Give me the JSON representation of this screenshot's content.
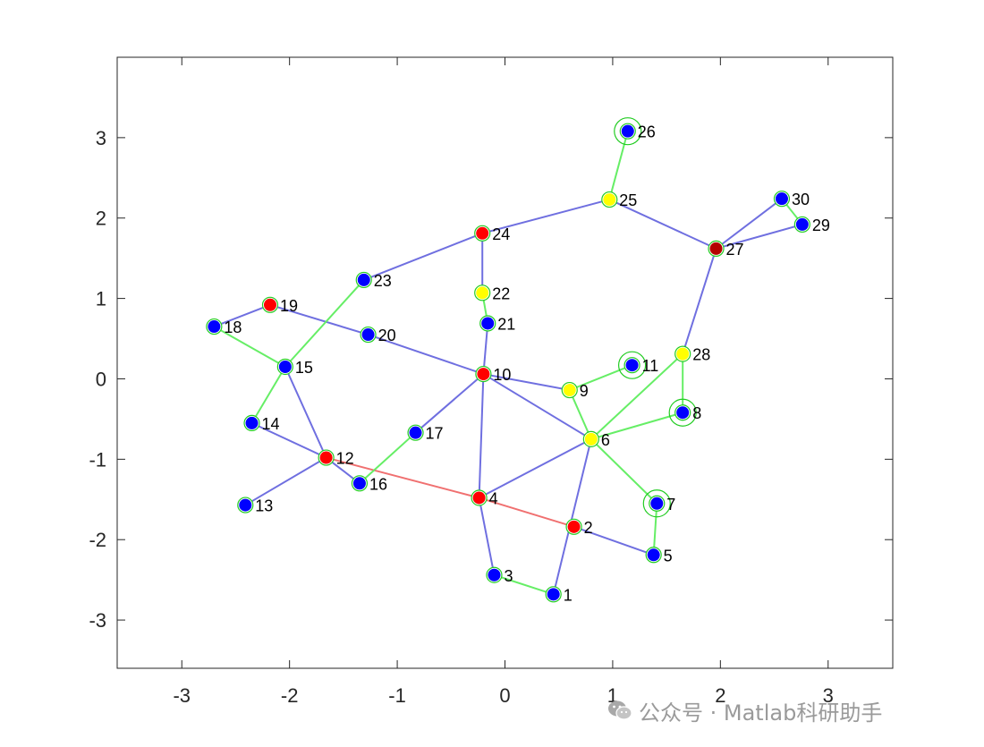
{
  "chart_data": {
    "type": "scatter",
    "title": "",
    "xlabel": "",
    "ylabel": "",
    "xlim": [
      -3.6,
      3.6
    ],
    "ylim": [
      -3.6,
      4.0
    ],
    "xticks": [
      -3,
      -2,
      -1,
      0,
      1,
      2,
      3
    ],
    "xtick_labels": [
      "-3",
      "-2",
      "-1",
      "0",
      "1",
      "2",
      "3"
    ],
    "yticks": [
      3,
      2,
      1,
      0,
      -1,
      -2,
      -3
    ],
    "ytick_labels": [
      "3",
      "2",
      "1",
      "0",
      "-1",
      "-2",
      "-3"
    ],
    "grid": false,
    "colors": {
      "edge_default": "#6f6fe0",
      "edge_highlight": "#66ee66",
      "edge_critical": "#f07070",
      "node_outline": "#22cc22",
      "blue": "#0000ff",
      "red": "#ff0000",
      "yellow": "#ffff00",
      "darkred": "#b40000"
    },
    "nodes": [
      {
        "id": "1",
        "x": 0.45,
        "y": -2.68,
        "color": "blue"
      },
      {
        "id": "2",
        "x": 0.64,
        "y": -1.84,
        "color": "red"
      },
      {
        "id": "3",
        "x": -0.1,
        "y": -2.44,
        "color": "blue"
      },
      {
        "id": "4",
        "x": -0.24,
        "y": -1.48,
        "color": "red"
      },
      {
        "id": "5",
        "x": 1.38,
        "y": -2.19,
        "color": "blue"
      },
      {
        "id": "6",
        "x": 0.8,
        "y": -0.75,
        "color": "yellow"
      },
      {
        "id": "7",
        "x": 1.41,
        "y": -1.55,
        "color": "blue",
        "ring": true
      },
      {
        "id": "8",
        "x": 1.65,
        "y": -0.42,
        "color": "blue",
        "ring": true
      },
      {
        "id": "9",
        "x": 0.6,
        "y": -0.14,
        "color": "yellow"
      },
      {
        "id": "10",
        "x": -0.2,
        "y": 0.06,
        "color": "red"
      },
      {
        "id": "11",
        "x": 1.18,
        "y": 0.17,
        "color": "blue",
        "ring": true
      },
      {
        "id": "12",
        "x": -1.66,
        "y": -0.98,
        "color": "red"
      },
      {
        "id": "13",
        "x": -2.41,
        "y": -1.57,
        "color": "blue"
      },
      {
        "id": "14",
        "x": -2.35,
        "y": -0.55,
        "color": "blue"
      },
      {
        "id": "15",
        "x": -2.04,
        "y": 0.15,
        "color": "blue"
      },
      {
        "id": "16",
        "x": -1.35,
        "y": -1.3,
        "color": "blue"
      },
      {
        "id": "17",
        "x": -0.83,
        "y": -0.67,
        "color": "blue"
      },
      {
        "id": "18",
        "x": -2.7,
        "y": 0.65,
        "color": "blue"
      },
      {
        "id": "19",
        "x": -2.18,
        "y": 0.92,
        "color": "red"
      },
      {
        "id": "20",
        "x": -1.27,
        "y": 0.55,
        "color": "blue"
      },
      {
        "id": "21",
        "x": -0.16,
        "y": 0.69,
        "color": "blue"
      },
      {
        "id": "22",
        "x": -0.21,
        "y": 1.07,
        "color": "yellow"
      },
      {
        "id": "23",
        "x": -1.31,
        "y": 1.23,
        "color": "blue"
      },
      {
        "id": "24",
        "x": -0.21,
        "y": 1.81,
        "color": "red"
      },
      {
        "id": "25",
        "x": 0.97,
        "y": 2.23,
        "color": "yellow"
      },
      {
        "id": "26",
        "x": 1.14,
        "y": 3.08,
        "color": "blue",
        "ring": true
      },
      {
        "id": "27",
        "x": 1.96,
        "y": 1.62,
        "color": "darkred"
      },
      {
        "id": "28",
        "x": 1.65,
        "y": 0.31,
        "color": "yellow"
      },
      {
        "id": "29",
        "x": 2.76,
        "y": 1.92,
        "color": "blue"
      },
      {
        "id": "30",
        "x": 2.57,
        "y": 2.24,
        "color": "blue"
      }
    ],
    "edges": [
      {
        "from": "1",
        "to": "3",
        "kind": "highlight"
      },
      {
        "from": "1",
        "to": "6",
        "kind": "default"
      },
      {
        "from": "3",
        "to": "4",
        "kind": "default"
      },
      {
        "from": "4",
        "to": "2",
        "kind": "critical"
      },
      {
        "from": "12",
        "to": "4",
        "kind": "critical"
      },
      {
        "from": "2",
        "to": "5",
        "kind": "default"
      },
      {
        "from": "5",
        "to": "7",
        "kind": "highlight"
      },
      {
        "from": "4",
        "to": "10",
        "kind": "default"
      },
      {
        "from": "4",
        "to": "6",
        "kind": "default"
      },
      {
        "from": "6",
        "to": "7",
        "kind": "highlight"
      },
      {
        "from": "6",
        "to": "8",
        "kind": "highlight"
      },
      {
        "from": "6",
        "to": "28",
        "kind": "highlight"
      },
      {
        "from": "6",
        "to": "9",
        "kind": "highlight"
      },
      {
        "from": "6",
        "to": "10",
        "kind": "default"
      },
      {
        "from": "9",
        "to": "11",
        "kind": "highlight"
      },
      {
        "from": "9",
        "to": "10",
        "kind": "default"
      },
      {
        "from": "8",
        "to": "28",
        "kind": "highlight"
      },
      {
        "from": "28",
        "to": "27",
        "kind": "default"
      },
      {
        "from": "27",
        "to": "30",
        "kind": "default"
      },
      {
        "from": "27",
        "to": "29",
        "kind": "default"
      },
      {
        "from": "30",
        "to": "29",
        "kind": "highlight"
      },
      {
        "from": "27",
        "to": "25",
        "kind": "default"
      },
      {
        "from": "25",
        "to": "26",
        "kind": "highlight"
      },
      {
        "from": "25",
        "to": "24",
        "kind": "default"
      },
      {
        "from": "24",
        "to": "22",
        "kind": "default"
      },
      {
        "from": "24",
        "to": "23",
        "kind": "default"
      },
      {
        "from": "22",
        "to": "21",
        "kind": "highlight"
      },
      {
        "from": "21",
        "to": "10",
        "kind": "default"
      },
      {
        "from": "10",
        "to": "17",
        "kind": "default"
      },
      {
        "from": "10",
        "to": "20",
        "kind": "default"
      },
      {
        "from": "20",
        "to": "19",
        "kind": "default"
      },
      {
        "from": "19",
        "to": "18",
        "kind": "default"
      },
      {
        "from": "18",
        "to": "15",
        "kind": "highlight"
      },
      {
        "from": "15",
        "to": "23",
        "kind": "highlight"
      },
      {
        "from": "15",
        "to": "14",
        "kind": "highlight"
      },
      {
        "from": "15",
        "to": "12",
        "kind": "default"
      },
      {
        "from": "14",
        "to": "12",
        "kind": "default"
      },
      {
        "from": "12",
        "to": "13",
        "kind": "default"
      },
      {
        "from": "12",
        "to": "16",
        "kind": "default"
      },
      {
        "from": "16",
        "to": "17",
        "kind": "highlight"
      }
    ]
  },
  "watermark": {
    "icon": "wechat-icon",
    "text": "公众号 · Matlab科研助手"
  }
}
